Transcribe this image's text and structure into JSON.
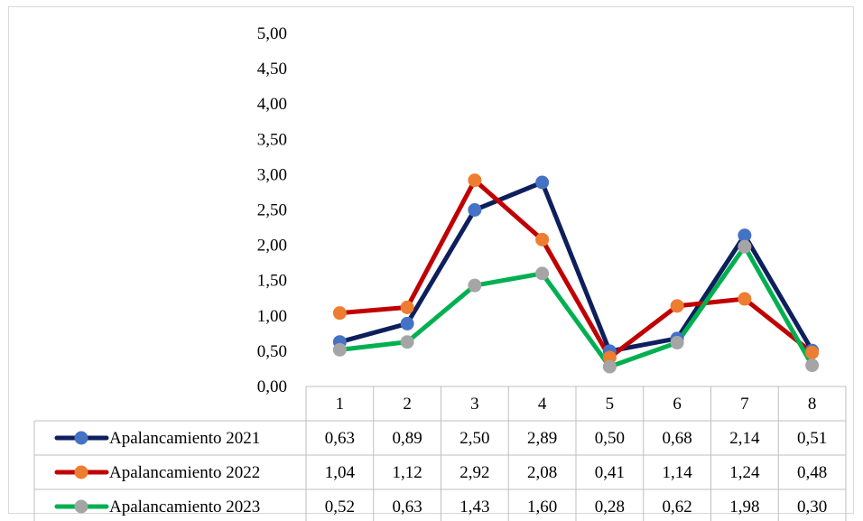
{
  "chart_data": {
    "type": "line",
    "title": "",
    "xlabel": "",
    "ylabel": "",
    "ylim": [
      0,
      5
    ],
    "y_ticks": [
      "0,00",
      "0,50",
      "1,00",
      "1,50",
      "2,00",
      "2,50",
      "3,00",
      "3,50",
      "4,00",
      "4,50",
      "5,00"
    ],
    "categories": [
      "1",
      "2",
      "3",
      "4",
      "5",
      "6",
      "7",
      "8"
    ],
    "grid": false,
    "legend": "data-table",
    "series": [
      {
        "name": "Apalancamiento 2021",
        "values": [
          0.63,
          0.89,
          2.5,
          2.89,
          0.5,
          0.68,
          2.14,
          0.51
        ],
        "labels": [
          "0,63",
          "0,89",
          "2,50",
          "2,89",
          "0,50",
          "0,68",
          "2,14",
          "0,51"
        ],
        "line_color": "#0d1f5c",
        "marker_color": "#4472c4"
      },
      {
        "name": "Apalancamiento 2022",
        "values": [
          1.04,
          1.12,
          2.92,
          2.08,
          0.41,
          1.14,
          1.24,
          0.48
        ],
        "labels": [
          "1,04",
          "1,12",
          "2,92",
          "2,08",
          "0,41",
          "1,14",
          "1,24",
          "0,48"
        ],
        "line_color": "#c00000",
        "marker_color": "#ed7d31"
      },
      {
        "name": "Apalancamiento 2023",
        "values": [
          0.52,
          0.63,
          1.43,
          1.6,
          0.28,
          0.62,
          1.98,
          0.3
        ],
        "labels": [
          "0,52",
          "0,63",
          "1,43",
          "1,60",
          "0,28",
          "0,62",
          "1,98",
          "0,30"
        ],
        "line_color": "#00b050",
        "marker_color": "#a5a5a5"
      }
    ]
  }
}
